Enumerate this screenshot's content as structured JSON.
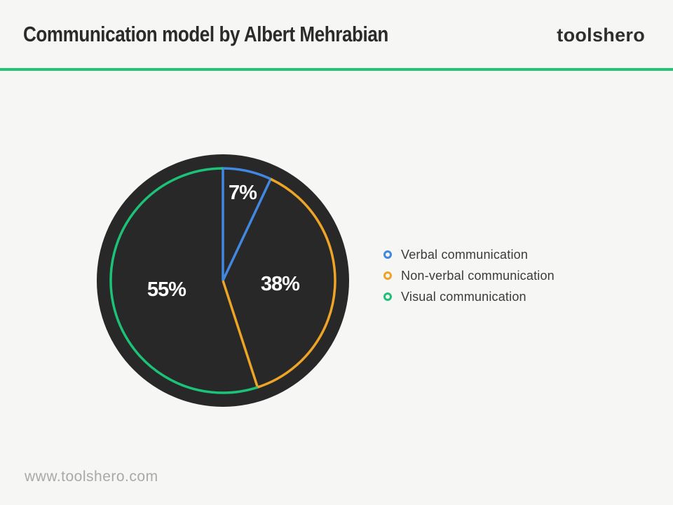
{
  "header": {
    "title": "Communication model by Albert Mehrabian",
    "brand": "toolshero"
  },
  "chart_data": {
    "type": "pie",
    "title": "Communication model by Albert Mehrabian",
    "unit": "%",
    "start_angle_deg": 0,
    "direction": "clockwise",
    "slices": [
      {
        "label": "Verbal communication",
        "value": 7,
        "display": "7%",
        "color": "#4287e0"
      },
      {
        "label": "Non-verbal communication",
        "value": 38,
        "display": "38%",
        "color": "#eda427"
      },
      {
        "label": "Visual communication",
        "value": 55,
        "display": "55%",
        "color": "#1cc277"
      }
    ],
    "legend_position": "right",
    "style": {
      "disk_color": "#282828",
      "background": "#f6f6f4",
      "label_color": "#ffffff",
      "divider_color": "#23c574"
    }
  },
  "footer": {
    "website": "www.toolshero.com"
  }
}
